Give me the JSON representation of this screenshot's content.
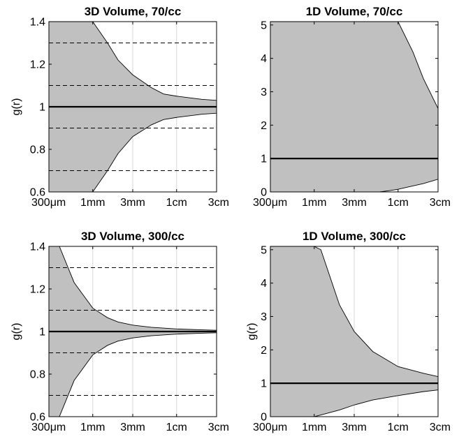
{
  "chart_data": [
    {
      "type": "area",
      "title": "3D Volume, 70/cc",
      "ylabel": "g(r)",
      "xlabel": "",
      "xscale": "log",
      "x_ticks": [
        {
          "value": 0.03,
          "label": "300μm"
        },
        {
          "value": 0.1,
          "label": "1mm"
        },
        {
          "value": 0.3,
          "label": "3mm"
        },
        {
          "value": 1,
          "label": "1cm"
        },
        {
          "value": 3,
          "label": "3cm"
        }
      ],
      "xlim": [
        0.03,
        3
      ],
      "ylim": [
        0.6,
        1.4
      ],
      "y_ticks": [
        {
          "value": 0.6,
          "label": "0.6"
        },
        {
          "value": 0.8,
          "label": "0.8"
        },
        {
          "value": 1,
          "label": "1"
        },
        {
          "value": 1.2,
          "label": "1.2"
        },
        {
          "value": 1.4,
          "label": "1.4"
        }
      ],
      "reference_line": 1,
      "dashed_lines": [
        0.7,
        0.9,
        1.1,
        1.3
      ],
      "vertical_grid": true,
      "band_x": [
        0.03,
        0.06,
        0.1,
        0.15,
        0.2,
        0.3,
        0.5,
        0.7,
        1,
        2,
        3
      ],
      "band_upper": [
        1.4,
        1.4,
        1.4,
        1.3,
        1.22,
        1.15,
        1.09,
        1.06,
        1.05,
        1.035,
        1.03
      ],
      "band_lower": [
        0.6,
        0.6,
        0.6,
        0.7,
        0.78,
        0.86,
        0.915,
        0.94,
        0.95,
        0.965,
        0.97
      ]
    },
    {
      "type": "area",
      "title": "1D Volume, 70/cc",
      "ylabel": "",
      "xlabel": "",
      "xscale": "log",
      "x_ticks": [
        {
          "value": 0.03,
          "label": "300μm"
        },
        {
          "value": 0.1,
          "label": "1mm"
        },
        {
          "value": 0.3,
          "label": "3mm"
        },
        {
          "value": 1,
          "label": "1cm"
        },
        {
          "value": 3,
          "label": "3cm"
        }
      ],
      "xlim": [
        0.03,
        3
      ],
      "ylim": [
        0,
        5.1
      ],
      "y_ticks": [
        {
          "value": 0,
          "label": "0"
        },
        {
          "value": 1,
          "label": "1"
        },
        {
          "value": 2,
          "label": "2"
        },
        {
          "value": 3,
          "label": "3"
        },
        {
          "value": 4,
          "label": "4"
        },
        {
          "value": 5,
          "label": "5"
        }
      ],
      "reference_line": 1,
      "dashed_lines": [],
      "vertical_grid": true,
      "band_x": [
        0.03,
        0.5,
        0.6,
        0.8,
        1,
        1.5,
        2,
        3
      ],
      "band_upper": [
        5.1,
        5.1,
        5.1,
        5.1,
        5.1,
        4.2,
        3.4,
        2.5
      ],
      "band_lower": [
        0,
        0,
        0,
        0.04,
        0.08,
        0.18,
        0.25,
        0.38
      ]
    },
    {
      "type": "area",
      "title": "3D Volume, 300/cc",
      "ylabel": "g(r)",
      "xlabel": "",
      "xscale": "log",
      "x_ticks": [
        {
          "value": 0.03,
          "label": "300μm"
        },
        {
          "value": 0.1,
          "label": "1mm"
        },
        {
          "value": 0.3,
          "label": "3mm"
        },
        {
          "value": 1,
          "label": "1cm"
        },
        {
          "value": 3,
          "label": "3cm"
        }
      ],
      "xlim": [
        0.03,
        3
      ],
      "ylim": [
        0.6,
        1.4
      ],
      "y_ticks": [
        {
          "value": 0.6,
          "label": "0.6"
        },
        {
          "value": 0.8,
          "label": "0.8"
        },
        {
          "value": 1,
          "label": "1"
        },
        {
          "value": 1.2,
          "label": "1.2"
        },
        {
          "value": 1.4,
          "label": "1.4"
        }
      ],
      "reference_line": 1,
      "dashed_lines": [
        0.7,
        0.9,
        1.1,
        1.3
      ],
      "vertical_grid": true,
      "band_x": [
        0.03,
        0.04,
        0.06,
        0.1,
        0.15,
        0.2,
        0.3,
        0.5,
        1,
        2,
        3
      ],
      "band_upper": [
        1.4,
        1.4,
        1.23,
        1.11,
        1.065,
        1.045,
        1.03,
        1.02,
        1.012,
        1.008,
        1.006
      ],
      "band_lower": [
        0.6,
        0.6,
        0.77,
        0.89,
        0.935,
        0.955,
        0.97,
        0.98,
        0.988,
        0.992,
        0.994
      ]
    },
    {
      "type": "area",
      "title": "1D Volume, 300/cc",
      "ylabel": "g(r)",
      "xlabel": "",
      "xscale": "log",
      "x_ticks": [
        {
          "value": 0.03,
          "label": "300μm"
        },
        {
          "value": 0.1,
          "label": "1mm"
        },
        {
          "value": 0.3,
          "label": "3mm"
        },
        {
          "value": 1,
          "label": "1cm"
        },
        {
          "value": 3,
          "label": "3cm"
        }
      ],
      "xlim": [
        0.03,
        3
      ],
      "ylim": [
        0,
        5.1
      ],
      "y_ticks": [
        {
          "value": 0,
          "label": "0"
        },
        {
          "value": 1,
          "label": "1"
        },
        {
          "value": 2,
          "label": "2"
        },
        {
          "value": 3,
          "label": "3"
        },
        {
          "value": 4,
          "label": "4"
        },
        {
          "value": 5,
          "label": "5"
        }
      ],
      "reference_line": 1,
      "dashed_lines": [],
      "vertical_grid": true,
      "band_x": [
        0.03,
        0.1,
        0.12,
        0.2,
        0.3,
        0.5,
        1,
        2,
        3
      ],
      "band_upper": [
        5.1,
        5.1,
        5.0,
        3.35,
        2.55,
        1.95,
        1.5,
        1.3,
        1.2
      ],
      "band_lower": [
        0,
        0,
        0.05,
        0.2,
        0.35,
        0.5,
        0.63,
        0.75,
        0.8
      ]
    }
  ]
}
